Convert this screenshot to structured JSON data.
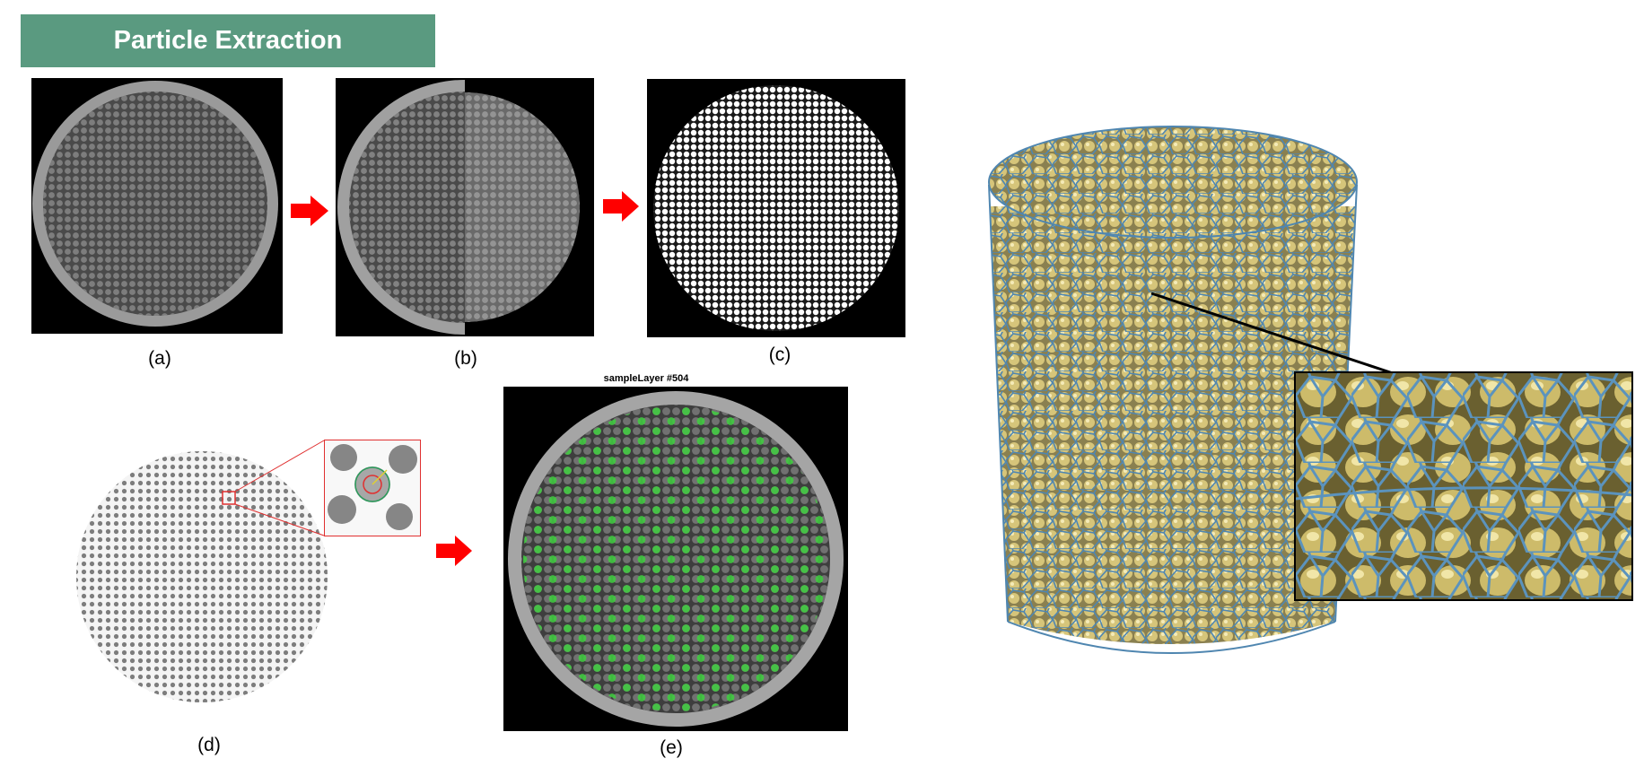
{
  "banner": {
    "title": "Particle Extraction",
    "color": "#5a9a80"
  },
  "panels": {
    "a": {
      "caption": "(a)"
    },
    "b": {
      "caption": "(b)"
    },
    "c": {
      "caption": "(c)"
    },
    "d": {
      "caption": "(d)"
    },
    "e": {
      "caption": "(e)",
      "title": "sampleLayer #504"
    }
  },
  "colors": {
    "arrow": "#ff0000",
    "particle_highlight": "#3fcf3f",
    "voronoi_edge": "#4f86b0",
    "particle_fill": "#c9b86a",
    "zoom_frame": "#000000",
    "inset_frame": "#e03030"
  },
  "icons": {
    "flow_arrow": "right-arrow-icon"
  }
}
